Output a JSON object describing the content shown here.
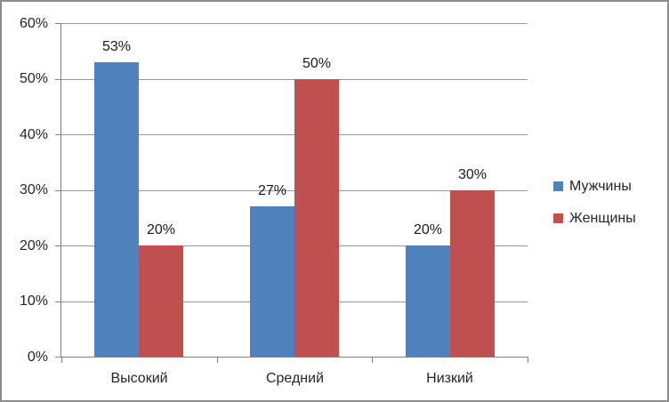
{
  "chart_data": {
    "type": "bar",
    "title": "",
    "categories": [
      "Высокий",
      "Средний",
      "Низкий"
    ],
    "series": [
      {
        "name": "Мужчины",
        "color": "#4f81bd",
        "values": [
          53,
          27,
          20
        ],
        "labels": [
          "53%",
          "27%",
          "20%"
        ]
      },
      {
        "name": "Женщины",
        "color": "#c0504d",
        "values": [
          20,
          50,
          30
        ],
        "labels": [
          "20%",
          "50%",
          "30%"
        ]
      }
    ],
    "value_axis": {
      "min": 0,
      "max": 60,
      "step": 10,
      "tick_labels": [
        "0%",
        "10%",
        "20%",
        "30%",
        "40%",
        "50%",
        "60%"
      ]
    },
    "legend": {
      "position": "right",
      "entries": [
        "Мужчины",
        "Женщины"
      ]
    },
    "grid": true,
    "data_labels": true
  },
  "style": {
    "series_colors": {
      "men": "#4f81bd",
      "women": "#c0504d"
    },
    "gridline_color": "#989898",
    "axis_color": "#7f7f7f",
    "text_color": "#262626",
    "frame_border_color": "#8c8c8c",
    "background": "#ffffff"
  }
}
